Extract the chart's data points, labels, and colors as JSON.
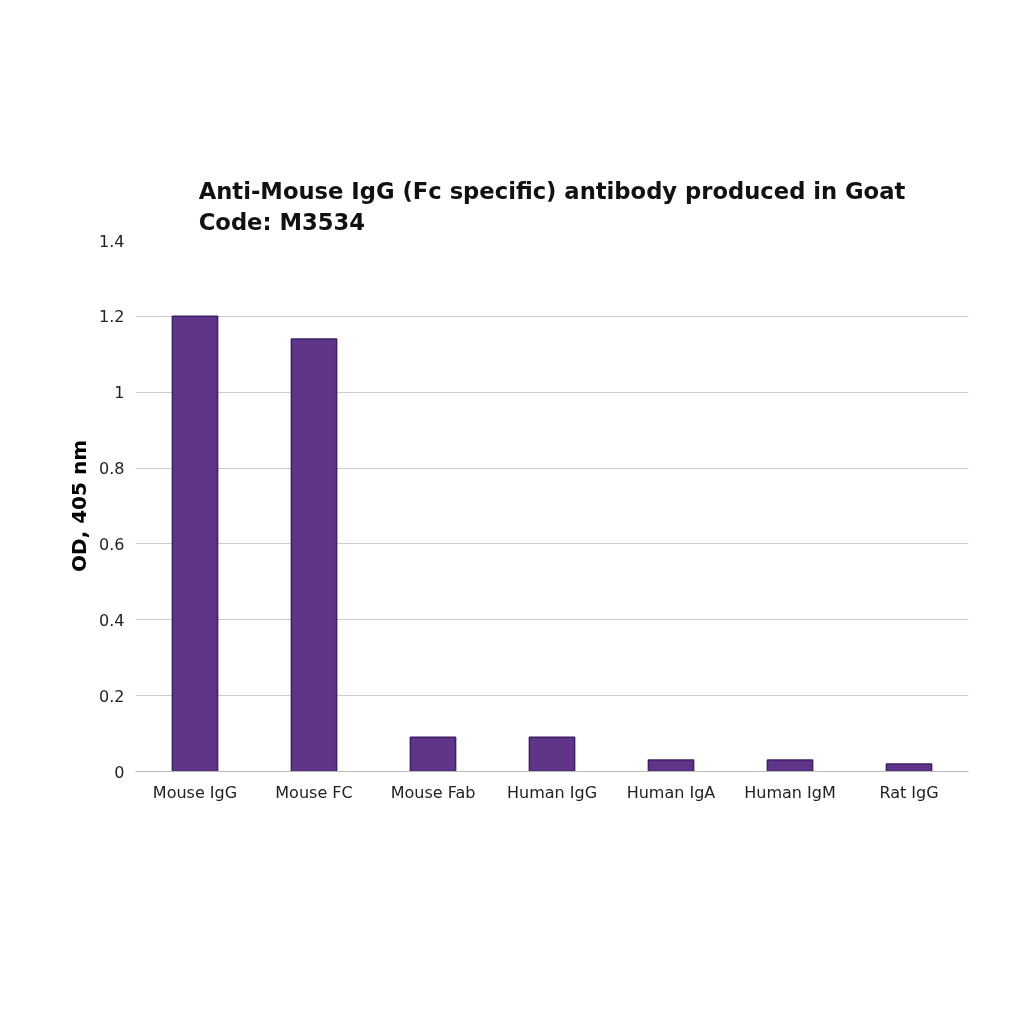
{
  "chart_data": {
    "type": "bar",
    "title": "Anti-Mouse IgG (Fc specific) antibody produced in Goat\nCode: M3534",
    "ylabel": "OD, 405 nm",
    "categories": [
      "Mouse IgG",
      "Mouse FC",
      "Mouse Fab",
      "Human IgG",
      "Human IgA",
      "Human IgM",
      "Rat IgG"
    ],
    "values": [
      1.2,
      1.14,
      0.09,
      0.09,
      0.03,
      0.03,
      0.02
    ],
    "color": "#5e3589",
    "ylim": [
      0,
      1.4
    ],
    "yticks": [
      0,
      0.2,
      0.4,
      0.6,
      0.8,
      1,
      1.2,
      1.4
    ],
    "grid": "y"
  }
}
